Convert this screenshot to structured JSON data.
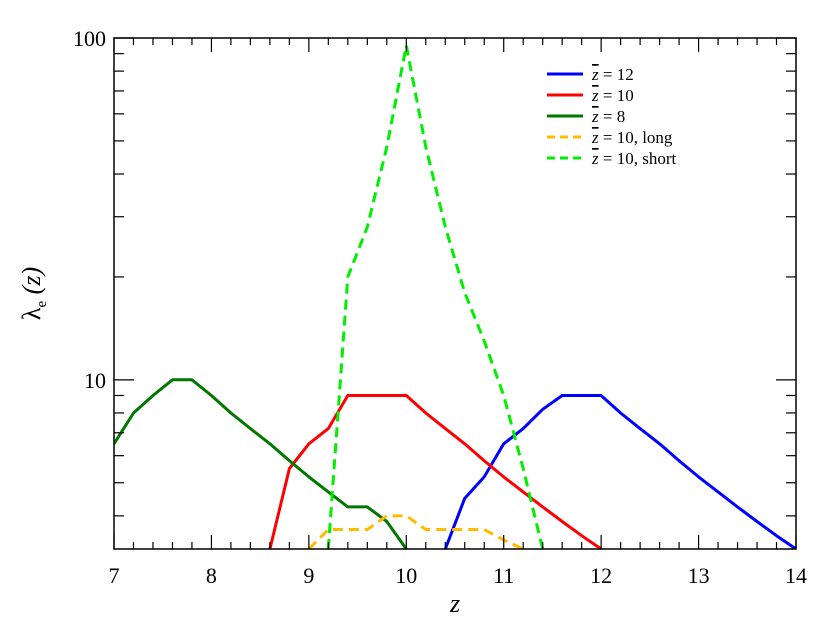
{
  "chart_data": {
    "type": "line",
    "title": "",
    "xlabel": "z",
    "ylabel": "λe (z)",
    "ylabel_main": "λ",
    "ylabel_sub": "e",
    "ylabel_arg": " (z)",
    "xlim": [
      7,
      14
    ],
    "ylim": [
      3.2,
      100
    ],
    "yscale": "log",
    "x_ticks": [
      7,
      8,
      9,
      10,
      11,
      12,
      13,
      14
    ],
    "x_tick_labels": [
      "7",
      "8",
      "9",
      "10",
      "11",
      "12",
      "13",
      "14"
    ],
    "y_ticks": [
      10,
      100
    ],
    "y_tick_labels": [
      "10",
      "100"
    ],
    "grid": false,
    "legend_position": "top-right",
    "series": [
      {
        "name": "z̄ = 12",
        "legend_bar": "z",
        "legend_rest": " = 12",
        "color": "#0000ff",
        "dash": "solid",
        "x": [
          10.4,
          10.6,
          10.8,
          11.0,
          11.2,
          11.4,
          11.6,
          11.8,
          12.0,
          12.2,
          12.4,
          12.6,
          12.8,
          13.0,
          13.2,
          13.4,
          13.6,
          13.8,
          14.0
        ],
        "y": [
          3.2,
          4.5,
          5.2,
          6.5,
          7.2,
          8.2,
          9.0,
          9.0,
          9.0,
          8.0,
          7.2,
          6.5,
          5.8,
          5.2,
          4.7,
          4.25,
          3.85,
          3.5,
          3.2
        ]
      },
      {
        "name": "z̄ = 10",
        "legend_bar": "z",
        "legend_rest": " = 10",
        "color": "#ff0000",
        "dash": "solid",
        "x": [
          8.6,
          8.8,
          9.0,
          9.2,
          9.4,
          9.6,
          9.8,
          10.0,
          10.2,
          10.4,
          10.6,
          10.8,
          11.0,
          11.2,
          11.4,
          11.6,
          11.8,
          12.0
        ],
        "y": [
          3.2,
          5.5,
          6.5,
          7.2,
          9.0,
          9.0,
          9.0,
          9.0,
          8.0,
          7.2,
          6.5,
          5.8,
          5.2,
          4.7,
          4.25,
          3.85,
          3.5,
          3.2
        ]
      },
      {
        "name": "z̄ = 8",
        "legend_bar": "z",
        "legend_rest": " = 8",
        "color": "#007700",
        "dash": "solid",
        "x": [
          7.0,
          7.2,
          7.4,
          7.6,
          7.8,
          8.0,
          8.2,
          8.4,
          8.6,
          8.8,
          9.0,
          9.2,
          9.4,
          9.6,
          9.8,
          10.0
        ],
        "y": [
          6.5,
          8.0,
          9.0,
          10.0,
          10.0,
          9.0,
          8.0,
          7.2,
          6.5,
          5.8,
          5.2,
          4.7,
          4.25,
          4.25,
          3.85,
          3.2
        ]
      },
      {
        "name": "z̄ = 10, long",
        "legend_bar": "z",
        "legend_rest": " = 10, long",
        "color": "#ffbb00",
        "dash": "dashed",
        "x": [
          9.0,
          9.2,
          9.4,
          9.6,
          9.8,
          10.0,
          10.2,
          10.4,
          10.6,
          10.8,
          11.0,
          11.2
        ],
        "y": [
          3.2,
          3.65,
          3.65,
          3.65,
          4.0,
          4.0,
          3.65,
          3.65,
          3.65,
          3.65,
          3.4,
          3.2
        ]
      },
      {
        "name": "z̄ = 10, short",
        "legend_bar": "z",
        "legend_rest": " = 10, short",
        "color": "#00ee00",
        "dash": "dashed",
        "x": [
          9.2,
          9.4,
          9.6,
          9.8,
          10.0,
          10.2,
          10.4,
          10.6,
          10.8,
          11.0,
          11.2,
          11.4
        ],
        "y": [
          3.2,
          20,
          28,
          48,
          95,
          48,
          28,
          18,
          13,
          9.0,
          5.5,
          3.2
        ]
      }
    ]
  }
}
